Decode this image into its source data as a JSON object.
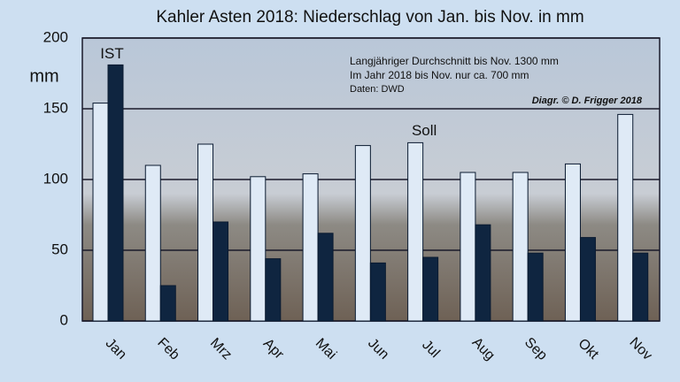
{
  "chart_data": {
    "type": "bar",
    "title": "Kahler Asten 2018: Niederschlag von Jan. bis Nov. in mm",
    "y_label": "mm",
    "annotations": [
      "Langjähriger Durchschnitt  bis Nov. 1300 mm",
      "Im Jahr 2018 bis Nov. nur ca. 700 mm",
      "Daten: DWD"
    ],
    "credit": "Diagr.   © D. Frigger 2018",
    "categories": [
      "Jan",
      "Feb",
      "Mrz",
      "Apr",
      "Mai",
      "Jun",
      "Jul",
      "Aug",
      "Sep",
      "Okt",
      "Nov"
    ],
    "series": [
      {
        "name": "Soll",
        "color": "#dfeaf6",
        "values": [
          154,
          110,
          125,
          102,
          104,
          124,
          126,
          105,
          105,
          111,
          146
        ]
      },
      {
        "name": "IST",
        "color": "#0f2540",
        "values": [
          181,
          25,
          70,
          44,
          62,
          41,
          45,
          68,
          48,
          59,
          48
        ]
      }
    ],
    "ylim": [
      0,
      200
    ],
    "yticks": [
      0,
      50,
      100,
      150,
      200
    ],
    "grid": true
  }
}
